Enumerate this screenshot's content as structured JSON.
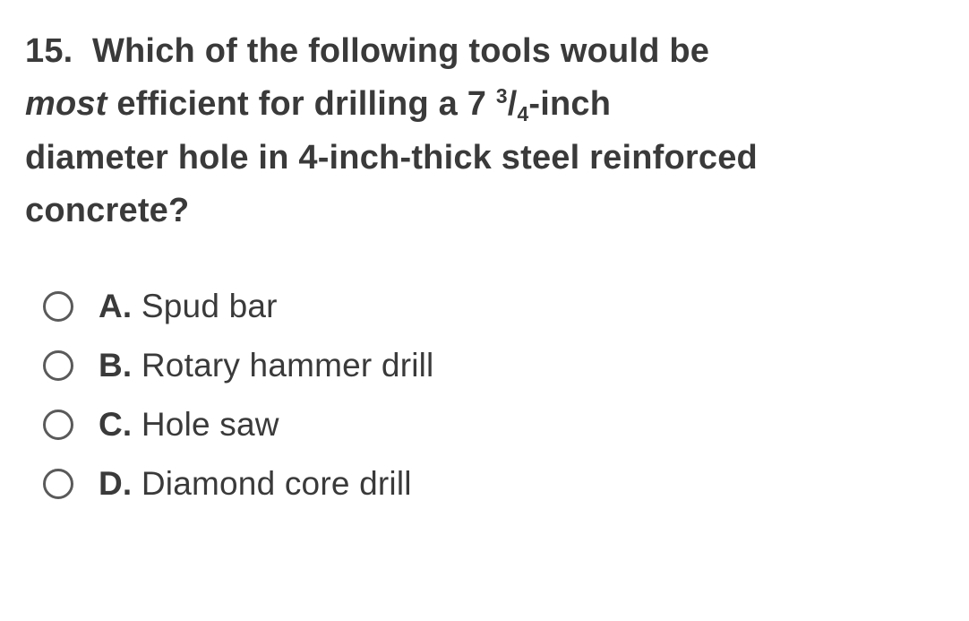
{
  "question": {
    "number": "15.",
    "line1_part1": "Which of the following tools would be",
    "emph": "most",
    "line2_part1": " efficient for drilling a 7 ",
    "frac_num": "3",
    "frac_slash": "/",
    "frac_den": "4",
    "line2_part2": "-inch",
    "line3": "diameter hole in 4-inch-thick steel reinforced",
    "line4": "concrete?"
  },
  "options": [
    {
      "letter": "A.",
      "text": " Spud bar"
    },
    {
      "letter": "B.",
      "text": " Rotary hammer drill"
    },
    {
      "letter": "C.",
      "text": " Hole saw"
    },
    {
      "letter": "D.",
      "text": " Diamond core drill"
    }
  ],
  "colors": {
    "text": "#3a3a3a",
    "radio_border": "#5a5a5a",
    "background": "#ffffff"
  }
}
